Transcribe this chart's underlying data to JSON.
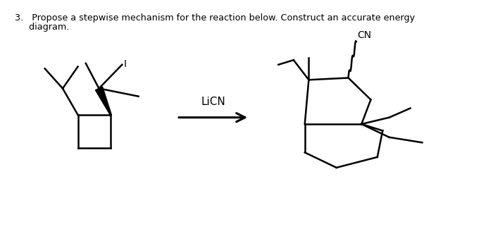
{
  "title_line1": "3.   Propose a stepwise mechanism for the reaction below. Construct an accurate energy",
  "title_line2": "     diagram.",
  "reagent_label": "LiCN",
  "product_label": "CN",
  "bg_color": "#ffffff",
  "text_color": "#000000",
  "line_color": "#000000",
  "line_width": 1.8,
  "figsize": [
    7.0,
    3.25
  ],
  "dpi": 100
}
